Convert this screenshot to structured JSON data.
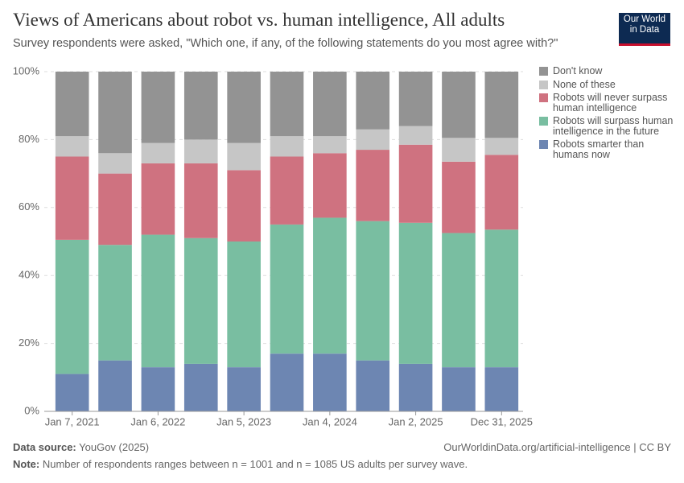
{
  "chart_data": {
    "type": "stacked_bar",
    "title": "Views of Americans about robot vs. human intelligence, All adults",
    "subtitle": "Survey respondents were asked, \"Which one, if any, of the following statements do you most agree with?\"",
    "logo": "Our World in Data",
    "categories": [
      "Jan 7, 2021",
      null,
      "Jan 6, 2022",
      null,
      "Jan 5, 2023",
      null,
      "Jan 4, 2024",
      null,
      "Jan 2, 2025",
      null,
      "Dec 31, 2025"
    ],
    "series": [
      {
        "name": "Robots smarter than humans now",
        "color": "#6d86b2",
        "values": [
          11,
          15,
          13,
          14,
          13,
          17,
          17,
          15,
          14,
          13,
          13
        ]
      },
      {
        "name": "Robots will surpass human intelligence in the future",
        "color": "#79bea1",
        "values": [
          39.5,
          34,
          39,
          37,
          37,
          38,
          40,
          41,
          41.5,
          39.5,
          40.5
        ]
      },
      {
        "name": "Robots will never surpass human intelligence",
        "color": "#cf7280",
        "values": [
          24.5,
          21,
          21,
          22,
          21,
          20,
          19,
          21,
          23,
          21,
          22
        ]
      },
      {
        "name": "None of these",
        "color": "#c6c6c6",
        "values": [
          6,
          6,
          6,
          7,
          8,
          6,
          5,
          6,
          5.5,
          7,
          5
        ]
      },
      {
        "name": "Don't know",
        "color": "#939393",
        "values": [
          19,
          24,
          21,
          20,
          21,
          19,
          19,
          17,
          16,
          19.5,
          19.5
        ]
      }
    ],
    "ylim": [
      0,
      100
    ],
    "yticks": [
      {
        "value": 0,
        "label": "0%"
      },
      {
        "value": 20,
        "label": "20%"
      },
      {
        "value": 40,
        "label": "40%"
      },
      {
        "value": 60,
        "label": "60%"
      },
      {
        "value": 80,
        "label": "80%"
      },
      {
        "value": 100,
        "label": "100%"
      }
    ],
    "grid": true,
    "legend": "right",
    "source_label": "Data source:",
    "source": "YouGov (2025)",
    "url": "OurWorldinData.org/artificial-intelligence | CC BY",
    "note_label": "Note:",
    "note": "Number of respondents ranges between n = 1001 and n = 1085 US adults per survey wave."
  }
}
